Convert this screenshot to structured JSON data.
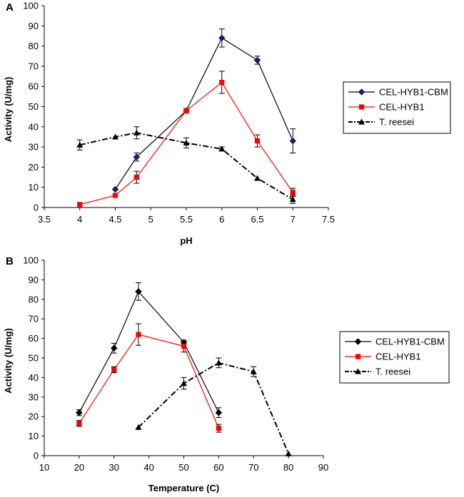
{
  "chart_data": [
    {
      "panel": "A",
      "type": "line",
      "xlabel": "pH",
      "ylabel": "Activity (U/mg)",
      "xlim": [
        3.5,
        7.5
      ],
      "ylim": [
        0,
        100
      ],
      "xticks": [
        "3.5",
        "4",
        "4.5",
        "5",
        "5.5",
        "6",
        "6.5",
        "7",
        "7.5"
      ],
      "yticks": [
        "0",
        "10",
        "20",
        "30",
        "40",
        "50",
        "60",
        "70",
        "80",
        "90",
        "100"
      ],
      "legend_position": "right",
      "series": [
        {
          "name": "CEL-HYB1-CBM",
          "color": "#000000",
          "marker": "diamond",
          "marker_color": "#1a1a66",
          "dash": "solid",
          "x": [
            4.5,
            4.8,
            5.5,
            6,
            6.5,
            7
          ],
          "y": [
            9,
            25,
            48,
            84,
            73,
            33
          ],
          "err": [
            0,
            2,
            1,
            4.5,
            2,
            6
          ]
        },
        {
          "name": "CEL-HYB1",
          "color": "#ff0000",
          "marker": "square",
          "marker_color": "#ff0000",
          "dash": "solid",
          "x": [
            4,
            4.5,
            4.8,
            5.5,
            6,
            6.5,
            7
          ],
          "y": [
            1.5,
            6,
            15,
            48,
            62,
            33,
            7.5
          ],
          "err": [
            0,
            0,
            3,
            0,
            5.5,
            3,
            2
          ]
        },
        {
          "name": "T. reesei",
          "color": "#000000",
          "marker": "triangle",
          "marker_color": "#000000",
          "dash": "dashdot",
          "x": [
            4,
            4.5,
            4.8,
            5.5,
            6,
            6.5,
            7
          ],
          "y": [
            31,
            35,
            37,
            32,
            29,
            14.5,
            4
          ],
          "err": [
            2.5,
            0,
            3,
            2.5,
            1,
            0,
            2
          ]
        }
      ]
    },
    {
      "panel": "B",
      "type": "line",
      "xlabel": "Temperature (C)",
      "ylabel": "Activity (U/mg)",
      "xlim": [
        10,
        90
      ],
      "ylim": [
        0,
        100
      ],
      "xticks": [
        "10",
        "20",
        "30",
        "40",
        "50",
        "60",
        "70",
        "80",
        "90"
      ],
      "yticks": [
        "0",
        "10",
        "20",
        "30",
        "40",
        "50",
        "60",
        "70",
        "80",
        "90",
        "100"
      ],
      "legend_position": "right",
      "series": [
        {
          "name": "CEL-HYB1-CBM",
          "color": "#000000",
          "marker": "diamond",
          "marker_color": "#000000",
          "dash": "solid",
          "x": [
            20,
            30,
            37,
            50,
            60
          ],
          "y": [
            22,
            55,
            84,
            58,
            22
          ],
          "err": [
            1.5,
            2.5,
            4.5,
            1,
            2.5
          ]
        },
        {
          "name": "CEL-HYB1",
          "color": "#ff0000",
          "marker": "square",
          "marker_color": "#ff0000",
          "dash": "solid",
          "x": [
            20,
            30,
            37,
            50,
            60
          ],
          "y": [
            16.5,
            44,
            62,
            56,
            14
          ],
          "err": [
            1.5,
            1.5,
            5.5,
            3,
            2
          ]
        },
        {
          "name": "T. reesei",
          "color": "#000000",
          "marker": "triangle",
          "marker_color": "#000000",
          "dash": "dashdot",
          "x": [
            37,
            50,
            60,
            70,
            80
          ],
          "y": [
            14.5,
            37,
            47.5,
            43,
            1
          ],
          "err": [
            0,
            3,
            2.5,
            2.5,
            0
          ]
        }
      ]
    }
  ]
}
